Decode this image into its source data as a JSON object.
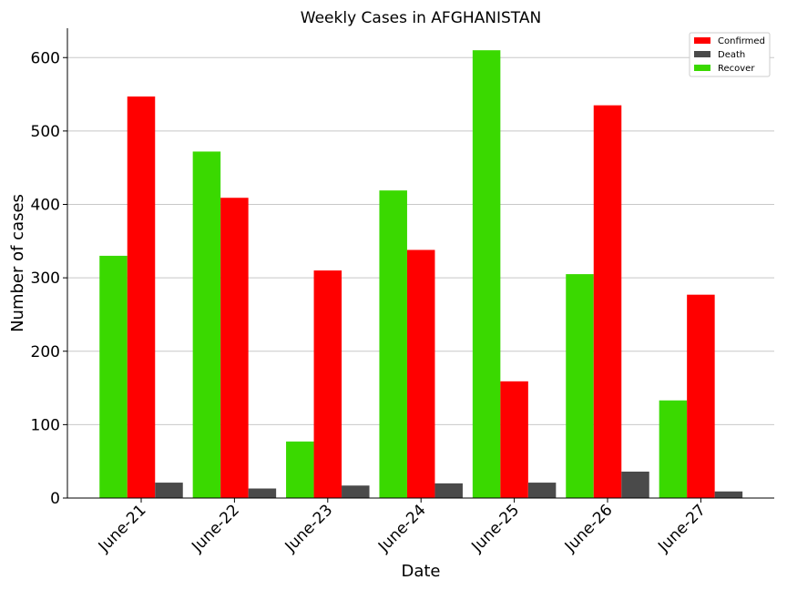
{
  "chart_data": {
    "type": "bar",
    "title": "Weekly Cases in AFGHANISTAN",
    "xlabel": "Date",
    "ylabel": "Number of cases",
    "categories": [
      "June-21",
      "June-22",
      "June-23",
      "June-24",
      "June-25",
      "June-26",
      "June-27"
    ],
    "series": [
      {
        "name": "Recover",
        "color": "#3ad900",
        "values": [
          330,
          472,
          77,
          419,
          610,
          305,
          133
        ]
      },
      {
        "name": "Confirmed",
        "color": "#ff0000",
        "values": [
          547,
          409,
          310,
          338,
          159,
          535,
          277
        ]
      },
      {
        "name": "Death",
        "color": "#4a4a4a",
        "values": [
          21,
          13,
          17,
          20,
          21,
          36,
          9
        ]
      }
    ],
    "legend_order": [
      "Confirmed",
      "Death",
      "Recover"
    ],
    "legend_position": "top-right",
    "ylim": [
      0,
      640
    ],
    "yticks": [
      0,
      100,
      200,
      300,
      400,
      500,
      600
    ],
    "grid": "horizontal"
  }
}
